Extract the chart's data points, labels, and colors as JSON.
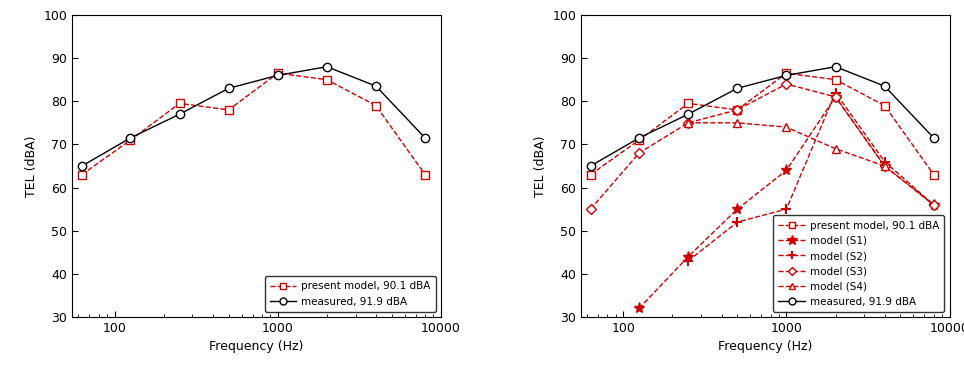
{
  "frequencies": [
    63,
    125,
    250,
    500,
    1000,
    2000,
    4000,
    8000
  ],
  "present_model": [
    63,
    71,
    79.5,
    78,
    86.5,
    85,
    79,
    63
  ],
  "measured": [
    65,
    71.5,
    77,
    83,
    86,
    88,
    83.5,
    71.5
  ],
  "S1": [
    null,
    32,
    44,
    55,
    64,
    81,
    65,
    56
  ],
  "S2": [
    null,
    null,
    43,
    52,
    55,
    82,
    66,
    56
  ],
  "S3": [
    55,
    68,
    75,
    78,
    84,
    81,
    65,
    56
  ],
  "S4": [
    null,
    null,
    75,
    75,
    74,
    69,
    65,
    null
  ],
  "ylim": [
    30,
    100
  ],
  "yticks": [
    30,
    40,
    50,
    60,
    70,
    80,
    90,
    100
  ],
  "xlim": [
    55,
    10000
  ],
  "ylabel": "TEL (dBA)",
  "xlabel": "Frequency (Hz)",
  "legend1": [
    "present model, 90.1 dBA",
    "measured, 91.9 dBA"
  ],
  "legend2": [
    "present model, 90.1 dBA",
    "model (S1)",
    "model (S2)",
    "model (S3)",
    "model (S4)",
    "measured, 91.9 dBA"
  ],
  "red": "#cc0000",
  "black": "#000000",
  "figsize": [
    9.64,
    3.73
  ],
  "dpi": 100
}
